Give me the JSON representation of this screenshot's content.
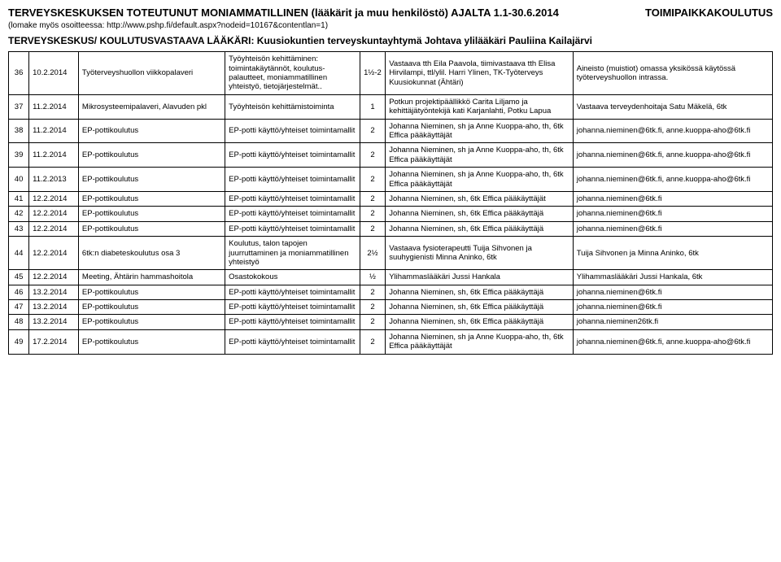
{
  "header": {
    "title_left": "TERVEYSKESKUKSEN TOTEUTUNUT MONIAMMATILLINEN (lääkärit ja muu henkilöstö) AJALTA 1.1-30.6.2014",
    "title_right": "TOIMIPAIKKAKOULUTUS",
    "subnote": "(lomake myös osoitteessa: http://www.pshp.fi/default.aspx?nodeid=10167&contentlan=1)",
    "subtitle": "TERVEYSKESKUS/ KOULUTUSVASTAAVA LÄÄKÄRI: Kuusiokuntien terveyskuntayhtymä Johtava ylilääkäri Pauliina Kailajärvi"
  },
  "rows": [
    {
      "num": "36",
      "date": "10.2.2014",
      "name": "Työterveyshuollon viikkopalaveri",
      "topic": "Työyhteisön kehittäminen: toimintakäytännöt, koulutus-palautteet, moniammatillinen yhteistyö, tietojärjestelmät..",
      "dur": "1½-2",
      "who": "Vastaava tth Eila Paavola, tiimivastaava tth Elisa Hirvilampi, ttl/ylil. Harri Ylinen, TK-Työterveys Kuusiokunnat (Ähtäri)",
      "notes": "Aineisto (muistiot) omassa yksikössä käytössä työterveyshuollon intrassa."
    },
    {
      "num": "37",
      "date": "11.2.2014",
      "name": "Mikrosysteemipalaveri, Alavuden pkl",
      "topic": "Työyhteisön kehittämistoiminta",
      "dur": "1",
      "who": "Potkun projektipäällikkö Carita Liljamo ja kehittäjätyöntekijä kati Karjanlahti, Potku Lapua",
      "notes": "Vastaava terveydenhoitaja Satu Mäkelä, 6tk"
    },
    {
      "num": "38",
      "date": "11.2.2014",
      "name": "EP-pottikoulutus",
      "topic": "EP-potti käyttö/yhteiset toimintamallit",
      "dur": "2",
      "who": "Johanna Nieminen, sh ja Anne Kuoppa-aho, th, 6tk Effica pääkäyttäjät",
      "notes": "johanna.nieminen@6tk.fi, anne.kuoppa-aho@6tk.fi"
    },
    {
      "num": "39",
      "date": "11.2.2014",
      "name": "EP-pottikoulutus",
      "topic": "EP-potti käyttö/yhteiset toimintamallit",
      "dur": "2",
      "who": "Johanna Nieminen, sh ja Anne Kuoppa-aho, th, 6tk Effica pääkäyttäjät",
      "notes": "johanna.nieminen@6tk.fi, anne.kuoppa-aho@6tk.fi"
    },
    {
      "num": "40",
      "date": "11.2.2013",
      "name": "EP-pottikoulutus",
      "topic": "EP-potti käyttö/yhteiset toimintamallit",
      "dur": "2",
      "who": "Johanna Nieminen, sh ja Anne Kuoppa-aho, th, 6tk Effica pääkäyttäjät",
      "notes": "johanna.nieminen@6tk.fi, anne.kuoppa-aho@6tk.fi"
    },
    {
      "num": "41",
      "date": "12.2.2014",
      "name": "EP-pottikoulutus",
      "topic": "EP-potti käyttö/yhteiset toimintamallit",
      "dur": "2",
      "who": "Johanna Nieminen, sh, 6tk Effica pääkäyttäjät",
      "notes": "johanna.nieminen@6tk.fi"
    },
    {
      "num": "42",
      "date": "12.2.2014",
      "name": "EP-pottikoulutus",
      "topic": "EP-potti käyttö/yhteiset toimintamallit",
      "dur": "2",
      "who": "Johanna Nieminen, sh, 6tk Effica pääkäyttäjä",
      "notes": "johanna.nieminen@6tk.fi"
    },
    {
      "num": "43",
      "date": "12.2.2014",
      "name": "EP-pottikoulutus",
      "topic": "EP-potti käyttö/yhteiset toimintamallit",
      "dur": "2",
      "who": "Johanna Nieminen, sh, 6tk Effica pääkäyttäjä",
      "notes": "johanna.nieminen@6tk.fi"
    },
    {
      "num": "44",
      "date": "12.2.2014",
      "name": "6tk:n diabeteskoulutus osa 3",
      "topic": "Koulutus, talon tapojen juurruttaminen ja moniammatillinen yhteistyö",
      "dur": "2½",
      "who": "Vastaava fysioterapeutti Tuija Sihvonen ja suuhygienisti Minna Aninko, 6tk",
      "notes": "Tuija Sihvonen ja Minna Aninko, 6tk"
    },
    {
      "num": "45",
      "date": "12.2.2014",
      "name": "Meeting, Ähtärin hammashoitola",
      "topic": "Osastokokous",
      "dur": "½",
      "who": "Ylihammaslääkäri Jussi Hankala",
      "notes": "Ylihammaslääkäri Jussi Hankala, 6tk"
    },
    {
      "num": "46",
      "date": "13.2.2014",
      "name": "EP-pottikoulutus",
      "topic": "EP-potti käyttö/yhteiset toimintamallit",
      "dur": "2",
      "who": "Johanna Nieminen, sh, 6tk Effica pääkäyttäjä",
      "notes": "johanna.nieminen@6tk.fi"
    },
    {
      "num": "47",
      "date": "13.2.2014",
      "name": "EP-pottikoulutus",
      "topic": "EP-potti käyttö/yhteiset toimintamallit",
      "dur": "2",
      "who": "Johanna Nieminen, sh, 6tk Effica pääkäyttäjä",
      "notes": "johanna.nieminen@6tk.fi"
    },
    {
      "num": "48",
      "date": "13.2.2014",
      "name": "EP-pottikoulutus",
      "topic": "EP-potti käyttö/yhteiset toimintamallit",
      "dur": "2",
      "who": "Johanna Nieminen, sh, 6tk Effica pääkäyttäjä",
      "notes": "johanna.nieminen26tk.fi"
    },
    {
      "num": "49",
      "date": "17.2.2014",
      "name": "EP-pottikoulutus",
      "topic": "EP-potti käyttö/yhteiset toimintamallit",
      "dur": "2",
      "who": "Johanna Nieminen, sh ja Anne Kuoppa-aho, th, 6tk Effica pääkäyttäjät",
      "notes": "johanna.nieminen@6tk.fi, anne.kuoppa-aho@6tk.fi"
    }
  ]
}
